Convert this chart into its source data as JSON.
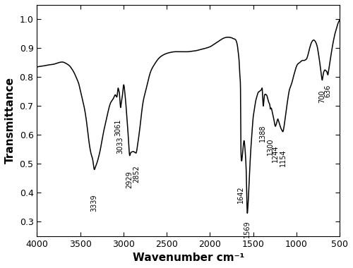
{
  "title": "",
  "xlabel": "Wavenumber cm⁻¹",
  "ylabel": "Transmittance",
  "xlim": [
    4000,
    500
  ],
  "ylim": [
    0.25,
    1.05
  ],
  "yticks": [
    0.3,
    0.4,
    0.5,
    0.6,
    0.7,
    0.8,
    0.9,
    1.0
  ],
  "xticks": [
    4000,
    3500,
    3000,
    2500,
    2000,
    1500,
    1000,
    500
  ],
  "line_color": "#000000",
  "line_width": 1.1,
  "background_color": "#ffffff",
  "annotations": [
    {
      "wavenumber": 3339,
      "transmittance": 0.395,
      "label": "3339"
    },
    {
      "wavenumber": 3061,
      "transmittance": 0.655,
      "label": "3061"
    },
    {
      "wavenumber": 3033,
      "transmittance": 0.595,
      "label": "3033"
    },
    {
      "wavenumber": 2929,
      "transmittance": 0.475,
      "label": "2929"
    },
    {
      "wavenumber": 2852,
      "transmittance": 0.495,
      "label": "2852"
    },
    {
      "wavenumber": 1642,
      "transmittance": 0.425,
      "label": "1642"
    },
    {
      "wavenumber": 1569,
      "transmittance": 0.305,
      "label": "1569"
    },
    {
      "wavenumber": 1388,
      "transmittance": 0.635,
      "label": "1388"
    },
    {
      "wavenumber": 1300,
      "transmittance": 0.59,
      "label": "1300"
    },
    {
      "wavenumber": 1244,
      "transmittance": 0.565,
      "label": "1244"
    },
    {
      "wavenumber": 1154,
      "transmittance": 0.55,
      "label": "1154"
    },
    {
      "wavenumber": 700,
      "transmittance": 0.755,
      "label": "700"
    },
    {
      "wavenumber": 636,
      "transmittance": 0.775,
      "label": "636"
    }
  ],
  "spectrum_points": [
    [
      4000,
      0.835
    ],
    [
      3950,
      0.838
    ],
    [
      3900,
      0.84
    ],
    [
      3850,
      0.843
    ],
    [
      3800,
      0.845
    ],
    [
      3750,
      0.85
    ],
    [
      3720,
      0.852
    ],
    [
      3700,
      0.852
    ],
    [
      3680,
      0.85
    ],
    [
      3650,
      0.845
    ],
    [
      3620,
      0.838
    ],
    [
      3600,
      0.83
    ],
    [
      3570,
      0.815
    ],
    [
      3540,
      0.795
    ],
    [
      3510,
      0.77
    ],
    [
      3480,
      0.73
    ],
    [
      3450,
      0.69
    ],
    [
      3420,
      0.63
    ],
    [
      3400,
      0.58
    ],
    [
      3370,
      0.53
    ],
    [
      3350,
      0.505
    ],
    [
      3339,
      0.482
    ],
    [
      3325,
      0.488
    ],
    [
      3310,
      0.5
    ],
    [
      3290,
      0.52
    ],
    [
      3260,
      0.56
    ],
    [
      3230,
      0.61
    ],
    [
      3200,
      0.65
    ],
    [
      3170,
      0.69
    ],
    [
      3150,
      0.71
    ],
    [
      3130,
      0.72
    ],
    [
      3110,
      0.73
    ],
    [
      3090,
      0.738
    ],
    [
      3070,
      0.74
    ],
    [
      3061,
      0.762
    ],
    [
      3055,
      0.755
    ],
    [
      3045,
      0.74
    ],
    [
      3033,
      0.695
    ],
    [
      3025,
      0.71
    ],
    [
      3015,
      0.73
    ],
    [
      3005,
      0.755
    ],
    [
      3000,
      0.77
    ],
    [
      2985,
      0.75
    ],
    [
      2970,
      0.7
    ],
    [
      2955,
      0.64
    ],
    [
      2940,
      0.575
    ],
    [
      2929,
      0.53
    ],
    [
      2920,
      0.535
    ],
    [
      2910,
      0.54
    ],
    [
      2895,
      0.542
    ],
    [
      2880,
      0.542
    ],
    [
      2870,
      0.54
    ],
    [
      2860,
      0.538
    ],
    [
      2852,
      0.538
    ],
    [
      2840,
      0.558
    ],
    [
      2820,
      0.6
    ],
    [
      2800,
      0.65
    ],
    [
      2780,
      0.7
    ],
    [
      2750,
      0.745
    ],
    [
      2720,
      0.78
    ],
    [
      2700,
      0.805
    ],
    [
      2650,
      0.84
    ],
    [
      2600,
      0.862
    ],
    [
      2550,
      0.875
    ],
    [
      2500,
      0.882
    ],
    [
      2450,
      0.886
    ],
    [
      2400,
      0.888
    ],
    [
      2350,
      0.888
    ],
    [
      2300,
      0.888
    ],
    [
      2250,
      0.888
    ],
    [
      2200,
      0.89
    ],
    [
      2150,
      0.892
    ],
    [
      2100,
      0.896
    ],
    [
      2050,
      0.9
    ],
    [
      2000,
      0.905
    ],
    [
      1980,
      0.908
    ],
    [
      1960,
      0.912
    ],
    [
      1940,
      0.916
    ],
    [
      1920,
      0.92
    ],
    [
      1900,
      0.924
    ],
    [
      1880,
      0.928
    ],
    [
      1860,
      0.932
    ],
    [
      1840,
      0.935
    ],
    [
      1820,
      0.937
    ],
    [
      1800,
      0.938
    ],
    [
      1780,
      0.938
    ],
    [
      1760,
      0.937
    ],
    [
      1740,
      0.935
    ],
    [
      1720,
      0.932
    ],
    [
      1700,
      0.928
    ],
    [
      1690,
      0.92
    ],
    [
      1680,
      0.905
    ],
    [
      1670,
      0.88
    ],
    [
      1660,
      0.845
    ],
    [
      1650,
      0.79
    ],
    [
      1645,
      0.72
    ],
    [
      1642,
      0.58
    ],
    [
      1638,
      0.52
    ],
    [
      1632,
      0.51
    ],
    [
      1625,
      0.53
    ],
    [
      1615,
      0.56
    ],
    [
      1605,
      0.58
    ],
    [
      1595,
      0.555
    ],
    [
      1585,
      0.51
    ],
    [
      1578,
      0.45
    ],
    [
      1569,
      0.335
    ],
    [
      1562,
      0.345
    ],
    [
      1555,
      0.38
    ],
    [
      1547,
      0.43
    ],
    [
      1538,
      0.49
    ],
    [
      1528,
      0.545
    ],
    [
      1518,
      0.59
    ],
    [
      1508,
      0.63
    ],
    [
      1500,
      0.66
    ],
    [
      1490,
      0.68
    ],
    [
      1480,
      0.7
    ],
    [
      1470,
      0.718
    ],
    [
      1460,
      0.73
    ],
    [
      1450,
      0.74
    ],
    [
      1440,
      0.748
    ],
    [
      1430,
      0.75
    ],
    [
      1420,
      0.752
    ],
    [
      1410,
      0.755
    ],
    [
      1400,
      0.76
    ],
    [
      1395,
      0.76
    ],
    [
      1388,
      0.72
    ],
    [
      1383,
      0.7
    ],
    [
      1378,
      0.71
    ],
    [
      1372,
      0.73
    ],
    [
      1365,
      0.74
    ],
    [
      1355,
      0.74
    ],
    [
      1345,
      0.738
    ],
    [
      1335,
      0.73
    ],
    [
      1325,
      0.718
    ],
    [
      1315,
      0.71
    ],
    [
      1305,
      0.7
    ],
    [
      1300,
      0.69
    ],
    [
      1295,
      0.692
    ],
    [
      1285,
      0.688
    ],
    [
      1275,
      0.675
    ],
    [
      1265,
      0.66
    ],
    [
      1255,
      0.645
    ],
    [
      1244,
      0.63
    ],
    [
      1235,
      0.635
    ],
    [
      1225,
      0.645
    ],
    [
      1215,
      0.655
    ],
    [
      1205,
      0.648
    ],
    [
      1195,
      0.638
    ],
    [
      1185,
      0.628
    ],
    [
      1175,
      0.62
    ],
    [
      1165,
      0.615
    ],
    [
      1154,
      0.612
    ],
    [
      1145,
      0.625
    ],
    [
      1135,
      0.645
    ],
    [
      1125,
      0.668
    ],
    [
      1115,
      0.69
    ],
    [
      1105,
      0.712
    ],
    [
      1095,
      0.732
    ],
    [
      1085,
      0.75
    ],
    [
      1075,
      0.762
    ],
    [
      1065,
      0.77
    ],
    [
      1055,
      0.778
    ],
    [
      1045,
      0.788
    ],
    [
      1035,
      0.8
    ],
    [
      1025,
      0.812
    ],
    [
      1015,
      0.822
    ],
    [
      1005,
      0.832
    ],
    [
      995,
      0.84
    ],
    [
      985,
      0.845
    ],
    [
      975,
      0.848
    ],
    [
      965,
      0.85
    ],
    [
      955,
      0.852
    ],
    [
      945,
      0.855
    ],
    [
      935,
      0.857
    ],
    [
      925,
      0.858
    ],
    [
      915,
      0.858
    ],
    [
      905,
      0.858
    ],
    [
      895,
      0.86
    ],
    [
      885,
      0.862
    ],
    [
      875,
      0.868
    ],
    [
      865,
      0.878
    ],
    [
      855,
      0.89
    ],
    [
      845,
      0.902
    ],
    [
      835,
      0.912
    ],
    [
      825,
      0.92
    ],
    [
      815,
      0.925
    ],
    [
      805,
      0.928
    ],
    [
      795,
      0.928
    ],
    [
      785,
      0.925
    ],
    [
      775,
      0.92
    ],
    [
      765,
      0.912
    ],
    [
      755,
      0.9
    ],
    [
      745,
      0.882
    ],
    [
      735,
      0.862
    ],
    [
      725,
      0.84
    ],
    [
      715,
      0.818
    ],
    [
      708,
      0.8
    ],
    [
      700,
      0.79
    ],
    [
      693,
      0.802
    ],
    [
      686,
      0.815
    ],
    [
      678,
      0.822
    ],
    [
      670,
      0.825
    ],
    [
      660,
      0.822
    ],
    [
      650,
      0.82
    ],
    [
      643,
      0.815
    ],
    [
      636,
      0.808
    ],
    [
      628,
      0.82
    ],
    [
      620,
      0.835
    ],
    [
      610,
      0.855
    ],
    [
      600,
      0.875
    ],
    [
      590,
      0.895
    ],
    [
      580,
      0.912
    ],
    [
      570,
      0.928
    ],
    [
      560,
      0.942
    ],
    [
      550,
      0.955
    ],
    [
      540,
      0.965
    ],
    [
      530,
      0.975
    ],
    [
      520,
      0.985
    ],
    [
      510,
      0.992
    ],
    [
      500,
      0.998
    ]
  ]
}
